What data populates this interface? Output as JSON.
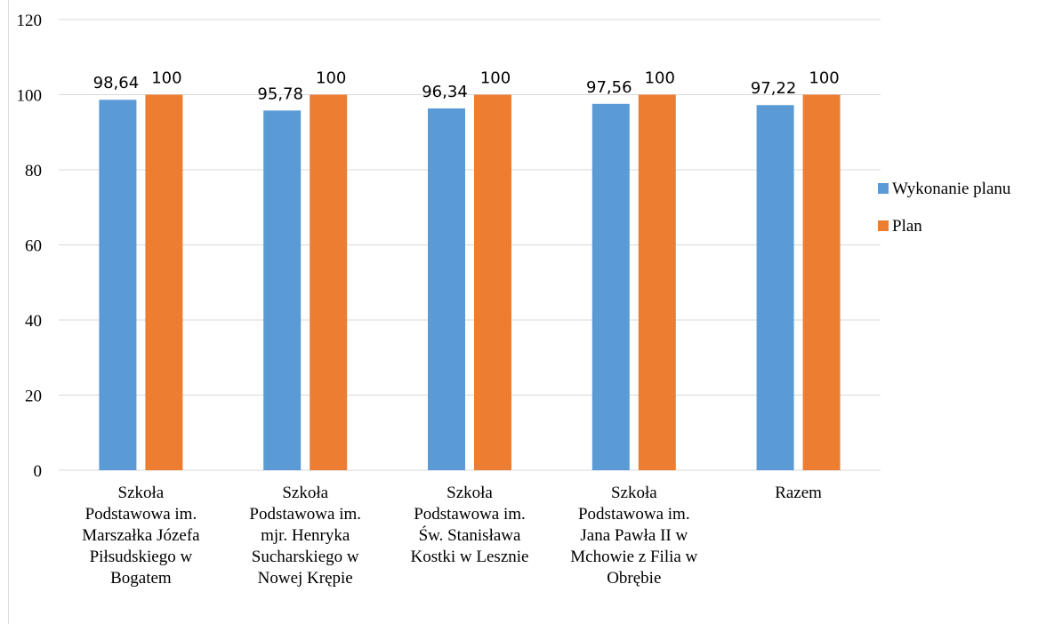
{
  "chart_data": {
    "type": "bar",
    "categories": [
      [
        "Szkoła",
        "Podstawowa im.",
        "Marszałka Józefa",
        "Piłsudskiego w",
        "Bogatem"
      ],
      [
        "Szkoła",
        "Podstawowa im.",
        "mjr. Henryka",
        "Sucharskiego w",
        "Nowej Krępie"
      ],
      [
        "Szkoła",
        "Podstawowa im.",
        "Św. Stanisława",
        "Kostki w Lesznie"
      ],
      [
        "Szkoła",
        "Podstawowa im.",
        "Jana Pawła II w",
        "Mchowie z Filia w",
        "Obrębie"
      ],
      [
        "Razem"
      ]
    ],
    "series": [
      {
        "name": "Wykonanie planu",
        "color": "#5b9bd5",
        "values": [
          98.64,
          95.78,
          96.34,
          97.56,
          97.22
        ],
        "labels": [
          "98,64",
          "95,78",
          "96,34",
          "97,56",
          "97,22"
        ]
      },
      {
        "name": "Plan",
        "color": "#ed7d31",
        "values": [
          100,
          100,
          100,
          100,
          100
        ],
        "labels": [
          "100",
          "100",
          "100",
          "100",
          "100"
        ]
      }
    ],
    "y_ticks": [
      0,
      20,
      40,
      60,
      80,
      100,
      120
    ],
    "ylim": [
      0,
      120
    ],
    "grid": true,
    "legend_position": "right"
  }
}
